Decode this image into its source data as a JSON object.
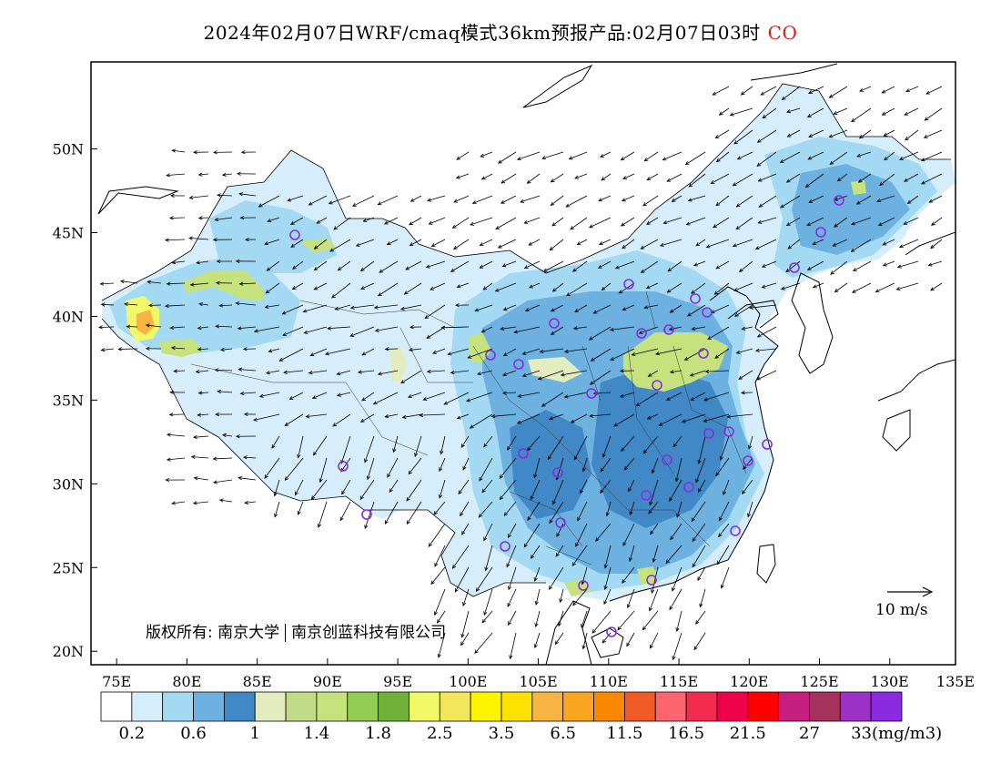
{
  "title": {
    "text": "2024年02月07日WRF/cmaq模式36km预报产品:02月07日03时",
    "species": "CO",
    "species_color": "#d81b1b"
  },
  "axes": {
    "lat_labels": [
      "50N",
      "45N",
      "40N",
      "35N",
      "30N",
      "25N",
      "20N"
    ],
    "lon_labels": [
      "75E",
      "80E",
      "85E",
      "90E",
      "95E",
      "100E",
      "105E",
      "110E",
      "115E",
      "120E",
      "125E",
      "130E",
      "135E"
    ],
    "lon_range": [
      73.5,
      135
    ],
    "lat_range": [
      18,
      54
    ]
  },
  "copyright": {
    "left": "版权所有: 南京大学",
    "right": "南京创蓝科技有限公司"
  },
  "vector_reference": {
    "label": "10 m/s"
  },
  "colorbar": {
    "colors": [
      "#ffffff",
      "#d6eefb",
      "#a3d9f3",
      "#6cb1e0",
      "#4189c6",
      "#e2ecbe",
      "#c0dc87",
      "#c6e27d",
      "#93cc54",
      "#6fb038",
      "#f0f868",
      "#f2e75a",
      "#fdf500",
      "#fde200",
      "#f8b443",
      "#f9a520",
      "#f98800",
      "#f05a27",
      "#fd6670",
      "#f22b4f",
      "#ef004b",
      "#ff0000",
      "#c71f7f",
      "#a4325b",
      "#9d30c5",
      "#8a2be2"
    ],
    "labels": [
      "0.2",
      "0.6",
      "1",
      "1.4",
      "1.8",
      "2.5",
      "3.5",
      "6.5",
      "11.5",
      "16.5",
      "21.5",
      "27",
      "33(mg/m3)"
    ]
  },
  "chart_data": {
    "type": "heatmap",
    "variable": "CO",
    "unit": "mg/m3",
    "field": "CO concentration with wind vectors"
  }
}
